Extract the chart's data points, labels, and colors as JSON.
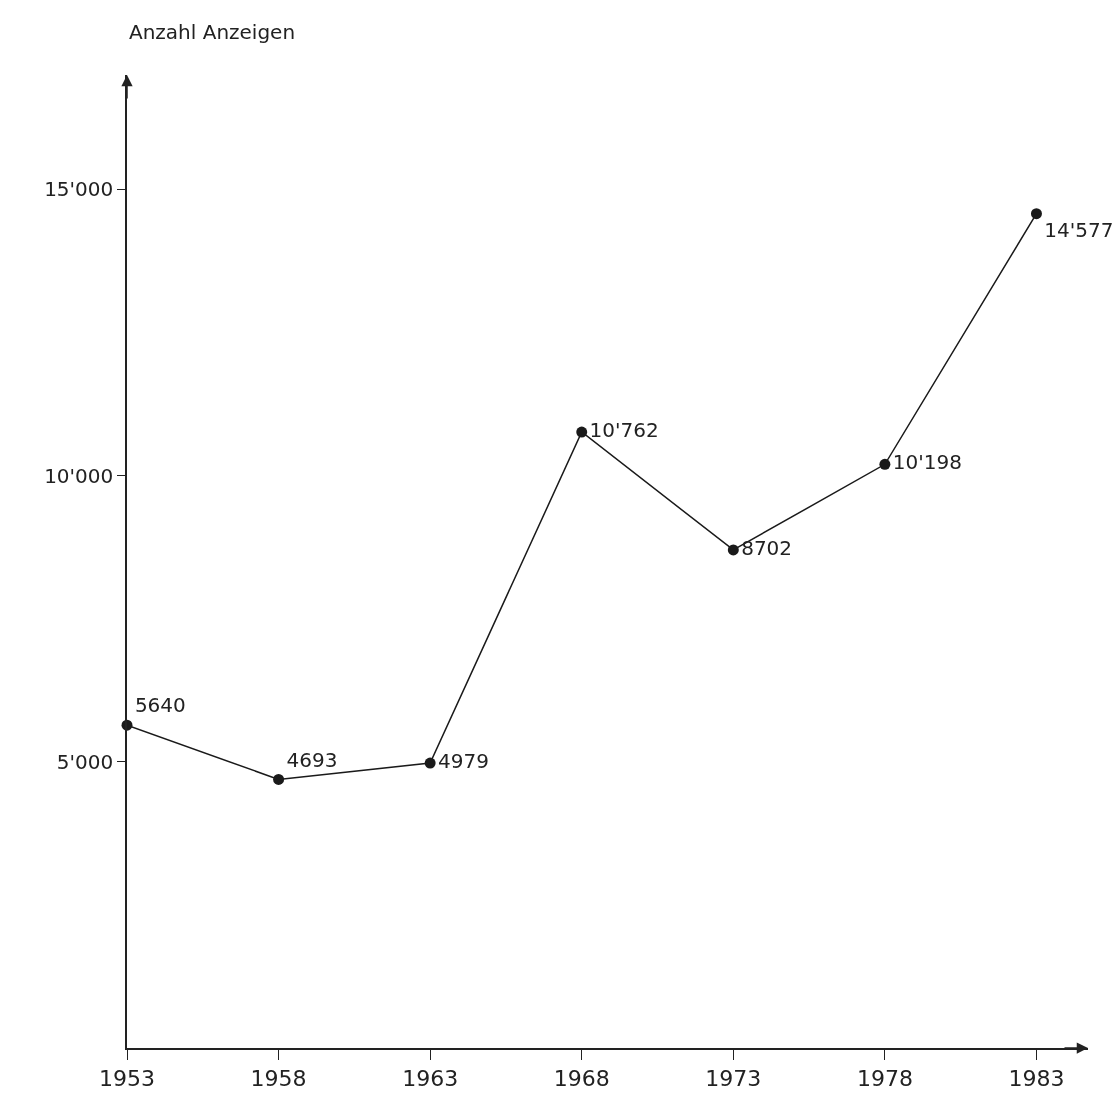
{
  "chart_data": {
    "type": "line",
    "ylabel": "Anzahl Anzeigen",
    "x": [
      1953,
      1958,
      1963,
      1968,
      1973,
      1978,
      1983
    ],
    "values": [
      5640,
      4693,
      4979,
      10762,
      8702,
      10198,
      14577
    ],
    "value_labels": [
      "5640",
      "4693",
      "4979",
      "10'762",
      "8702",
      "10'198",
      "14'577"
    ],
    "color": "#1a1a1a",
    "marker": "circle",
    "line_style": "solid",
    "xlim": [
      1953,
      1984.7
    ],
    "xticks": [
      1953,
      1958,
      1963,
      1968,
      1973,
      1978,
      1983
    ],
    "ylim": [
      0,
      17000
    ],
    "yticks": [
      {
        "value": 5000,
        "label": "5'000"
      },
      {
        "value": 10000,
        "label": "10'000"
      },
      {
        "value": 15000,
        "label": "15'000"
      }
    ]
  }
}
